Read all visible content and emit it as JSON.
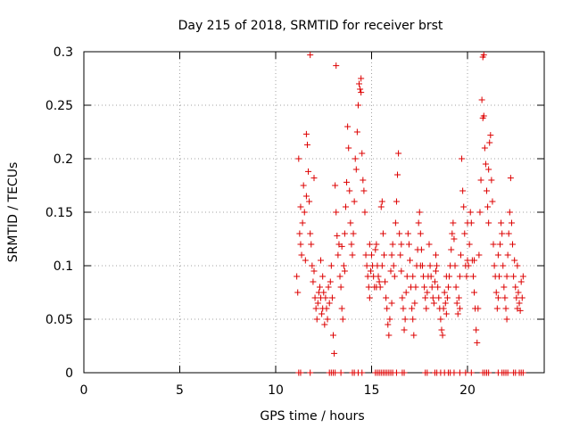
{
  "chart_data": {
    "type": "scatter",
    "title": "Day 215 of 2018, SRMTID for receiver brst",
    "xlabel": "GPS time / hours",
    "ylabel": "SRMTID / TECUs",
    "xlim": [
      0,
      24
    ],
    "ylim": [
      0,
      0.3
    ],
    "xticks": [
      0,
      5,
      10,
      15,
      20
    ],
    "xtick_labels": [
      "0",
      "5",
      "10",
      "15",
      "20"
    ],
    "yticks": [
      0,
      0.05,
      0.1,
      0.15,
      0.2,
      0.25,
      0.3
    ],
    "ytick_labels": [
      "0",
      "0.05",
      "0.1",
      "0.15",
      "0.2",
      "0.25",
      "0.3"
    ],
    "grid": true,
    "marker": "+",
    "color": "#dd0000",
    "series": [
      {
        "name": "SRMTID",
        "points": [
          [
            11.1,
            0.09
          ],
          [
            11.15,
            0.075
          ],
          [
            11.2,
            0.2
          ],
          [
            11.25,
            0.13
          ],
          [
            11.3,
            0.12
          ],
          [
            11.35,
            0.11
          ],
          [
            11.4,
            0.14
          ],
          [
            11.45,
            0.175
          ],
          [
            11.5,
            0.15
          ],
          [
            11.55,
            0.105
          ],
          [
            11.6,
            0.223
          ],
          [
            11.65,
            0.213
          ],
          [
            11.7,
            0.188
          ],
          [
            11.75,
            0.16
          ],
          [
            11.8,
            0.13
          ],
          [
            11.85,
            0.12
          ],
          [
            11.9,
            0.1
          ],
          [
            11.95,
            0.085
          ],
          [
            12.0,
            0.095
          ],
          [
            12.05,
            0.07
          ],
          [
            12.1,
            0.06
          ],
          [
            12.15,
            0.05
          ],
          [
            12.2,
            0.065
          ],
          [
            12.25,
            0.075
          ],
          [
            12.3,
            0.08
          ],
          [
            12.35,
            0.07
          ],
          [
            12.4,
            0.055
          ],
          [
            12.45,
            0.06
          ],
          [
            12.5,
            0.075
          ],
          [
            12.55,
            0.045
          ],
          [
            12.6,
            0.07
          ],
          [
            12.65,
            0.06
          ],
          [
            12.7,
            0.05
          ],
          [
            12.75,
            0.08
          ],
          [
            12.8,
            0.065
          ],
          [
            12.85,
            0.085
          ],
          [
            12.9,
            0.1
          ],
          [
            12.95,
            0.07
          ],
          [
            13.0,
            0.035
          ],
          [
            13.05,
            0.018
          ],
          [
            13.1,
            0.175
          ],
          [
            13.15,
            0.15
          ],
          [
            13.2,
            0.128
          ],
          [
            13.25,
            0.11
          ],
          [
            13.3,
            0.12
          ],
          [
            13.35,
            0.09
          ],
          [
            13.4,
            0.08
          ],
          [
            13.45,
            0.06
          ],
          [
            13.5,
            0.05
          ],
          [
            13.55,
            0.1
          ],
          [
            13.6,
            0.13
          ],
          [
            13.65,
            0.155
          ],
          [
            13.7,
            0.178
          ],
          [
            13.75,
            0.23
          ],
          [
            13.8,
            0.21
          ],
          [
            13.85,
            0.17
          ],
          [
            13.9,
            0.14
          ],
          [
            13.95,
            0.12
          ],
          [
            14.0,
            0.11
          ],
          [
            14.05,
            0.13
          ],
          [
            14.1,
            0.16
          ],
          [
            14.15,
            0.2
          ],
          [
            14.2,
            0.19
          ],
          [
            14.25,
            0.225
          ],
          [
            14.3,
            0.25
          ],
          [
            14.35,
            0.27
          ],
          [
            14.4,
            0.265
          ],
          [
            14.45,
            0.275
          ],
          [
            14.5,
            0.205
          ],
          [
            14.55,
            0.18
          ],
          [
            14.6,
            0.17
          ],
          [
            14.65,
            0.15
          ],
          [
            14.7,
            0.11
          ],
          [
            14.75,
            0.1
          ],
          [
            14.8,
            0.09
          ],
          [
            14.85,
            0.08
          ],
          [
            14.9,
            0.07
          ],
          [
            14.95,
            0.095
          ],
          [
            15.0,
            0.11
          ],
          [
            15.05,
            0.1
          ],
          [
            15.1,
            0.09
          ],
          [
            15.15,
            0.08
          ],
          [
            15.2,
            0.115
          ],
          [
            15.25,
            0.12
          ],
          [
            15.3,
            0.1
          ],
          [
            15.35,
            0.09
          ],
          [
            15.4,
            0.085
          ],
          [
            15.45,
            0.08
          ],
          [
            15.5,
            0.155
          ],
          [
            15.55,
            0.16
          ],
          [
            15.6,
            0.13
          ],
          [
            15.65,
            0.11
          ],
          [
            15.7,
            0.085
          ],
          [
            15.75,
            0.07
          ],
          [
            15.8,
            0.06
          ],
          [
            15.85,
            0.045
          ],
          [
            15.9,
            0.035
          ],
          [
            15.95,
            0.05
          ],
          [
            16.0,
            0.095
          ],
          [
            16.05,
            0.11
          ],
          [
            16.1,
            0.12
          ],
          [
            16.15,
            0.1
          ],
          [
            16.2,
            0.09
          ],
          [
            16.25,
            0.14
          ],
          [
            16.3,
            0.16
          ],
          [
            16.35,
            0.185
          ],
          [
            16.4,
            0.205
          ],
          [
            16.45,
            0.13
          ],
          [
            16.5,
            0.11
          ],
          [
            16.55,
            0.095
          ],
          [
            16.6,
            0.07
          ],
          [
            16.65,
            0.06
          ],
          [
            16.7,
            0.04
          ],
          [
            16.75,
            0.05
          ],
          [
            16.8,
            0.075
          ],
          [
            16.85,
            0.09
          ],
          [
            16.9,
            0.13
          ],
          [
            16.95,
            0.12
          ],
          [
            17.0,
            0.105
          ],
          [
            17.05,
            0.08
          ],
          [
            17.1,
            0.06
          ],
          [
            17.15,
            0.05
          ],
          [
            17.2,
            0.035
          ],
          [
            17.25,
            0.065
          ],
          [
            17.3,
            0.08
          ],
          [
            17.35,
            0.1
          ],
          [
            17.4,
            0.115
          ],
          [
            17.45,
            0.14
          ],
          [
            17.5,
            0.15
          ],
          [
            17.55,
            0.13
          ],
          [
            17.6,
            0.115
          ],
          [
            17.65,
            0.1
          ],
          [
            17.7,
            0.09
          ],
          [
            17.75,
            0.08
          ],
          [
            17.8,
            0.07
          ],
          [
            17.85,
            0.06
          ],
          [
            17.9,
            0.075
          ],
          [
            17.95,
            0.09
          ],
          [
            18.0,
            0.12
          ],
          [
            18.05,
            0.1
          ],
          [
            18.1,
            0.09
          ],
          [
            18.15,
            0.08
          ],
          [
            18.2,
            0.07
          ],
          [
            18.25,
            0.065
          ],
          [
            18.3,
            0.085
          ],
          [
            18.35,
            0.095
          ],
          [
            18.4,
            0.1
          ],
          [
            18.45,
            0.08
          ],
          [
            18.5,
            0.07
          ],
          [
            18.55,
            0.06
          ],
          [
            18.6,
            0.05
          ],
          [
            18.65,
            0.04
          ],
          [
            18.7,
            0.035
          ],
          [
            18.75,
            0.06
          ],
          [
            18.8,
            0.075
          ],
          [
            18.85,
            0.065
          ],
          [
            18.9,
            0.055
          ],
          [
            18.95,
            0.07
          ],
          [
            19.0,
            0.08
          ],
          [
            19.05,
            0.09
          ],
          [
            19.1,
            0.1
          ],
          [
            19.15,
            0.115
          ],
          [
            19.2,
            0.13
          ],
          [
            19.25,
            0.14
          ],
          [
            19.3,
            0.125
          ],
          [
            19.35,
            0.1
          ],
          [
            19.4,
            0.08
          ],
          [
            19.45,
            0.065
          ],
          [
            19.5,
            0.055
          ],
          [
            19.55,
            0.07
          ],
          [
            19.6,
            0.09
          ],
          [
            19.65,
            0.11
          ],
          [
            19.7,
            0.2
          ],
          [
            19.75,
            0.17
          ],
          [
            19.8,
            0.155
          ],
          [
            19.85,
            0.13
          ],
          [
            19.9,
            0.1
          ],
          [
            19.95,
            0.09
          ],
          [
            20.0,
            0.105
          ],
          [
            20.05,
            0.1
          ],
          [
            20.1,
            0.12
          ],
          [
            20.15,
            0.15
          ],
          [
            20.2,
            0.14
          ],
          [
            20.25,
            0.105
          ],
          [
            20.3,
            0.09
          ],
          [
            20.35,
            0.075
          ],
          [
            20.4,
            0.06
          ],
          [
            20.45,
            0.04
          ],
          [
            20.5,
            0.028
          ],
          [
            20.55,
            0.06
          ],
          [
            20.6,
            0.11
          ],
          [
            20.65,
            0.15
          ],
          [
            20.7,
            0.18
          ],
          [
            20.75,
            0.255
          ],
          [
            20.8,
            0.295
          ],
          [
            20.85,
            0.24
          ],
          [
            20.9,
            0.21
          ],
          [
            20.95,
            0.195
          ],
          [
            21.0,
            0.17
          ],
          [
            21.05,
            0.155
          ],
          [
            21.1,
            0.19
          ],
          [
            21.15,
            0.215
          ],
          [
            21.2,
            0.222
          ],
          [
            21.25,
            0.18
          ],
          [
            21.3,
            0.16
          ],
          [
            21.35,
            0.12
          ],
          [
            21.4,
            0.1
          ],
          [
            21.45,
            0.09
          ],
          [
            21.5,
            0.075
          ],
          [
            21.55,
            0.06
          ],
          [
            21.6,
            0.07
          ],
          [
            21.65,
            0.09
          ],
          [
            21.7,
            0.12
          ],
          [
            21.75,
            0.14
          ],
          [
            21.8,
            0.13
          ],
          [
            21.85,
            0.1
          ],
          [
            21.9,
            0.08
          ],
          [
            21.95,
            0.07
          ],
          [
            22.0,
            0.06
          ],
          [
            22.05,
            0.09
          ],
          [
            22.1,
            0.11
          ],
          [
            22.15,
            0.13
          ],
          [
            22.2,
            0.15
          ],
          [
            22.25,
            0.182
          ],
          [
            22.3,
            0.14
          ],
          [
            22.35,
            0.12
          ],
          [
            22.4,
            0.09
          ],
          [
            22.45,
            0.105
          ],
          [
            22.5,
            0.08
          ],
          [
            22.55,
            0.07
          ],
          [
            22.6,
            0.06
          ],
          [
            22.65,
            0.075
          ],
          [
            22.7,
            0.065
          ],
          [
            22.75,
            0.058
          ],
          [
            22.8,
            0.085
          ],
          [
            22.85,
            0.07
          ],
          [
            22.9,
            0.09
          ],
          [
            11.8,
            0.297
          ],
          [
            13.15,
            0.287
          ],
          [
            20.85,
            0.297
          ],
          [
            14.45,
            0.262
          ],
          [
            20.8,
            0.238
          ],
          [
            12.0,
            0.182
          ],
          [
            11.3,
            0.155
          ],
          [
            11.6,
            0.165
          ],
          [
            12.45,
            0.09
          ],
          [
            12.35,
            0.105
          ],
          [
            13.45,
            0.118
          ],
          [
            13.6,
            0.095
          ],
          [
            14.9,
            0.12
          ],
          [
            15.25,
            0.08
          ],
          [
            15.55,
            0.1
          ],
          [
            16.05,
            0.065
          ],
          [
            16.55,
            0.12
          ],
          [
            17.15,
            0.09
          ],
          [
            17.55,
            0.1
          ],
          [
            18.35,
            0.11
          ],
          [
            18.9,
            0.09
          ],
          [
            19.6,
            0.06
          ],
          [
            20.0,
            0.14
          ],
          [
            20.35,
            0.105
          ],
          [
            21.1,
            0.14
          ],
          [
            21.6,
            0.11
          ],
          [
            22.05,
            0.05
          ],
          [
            22.6,
            0.1
          ],
          [
            11.2,
            0.0
          ],
          [
            11.3,
            0.0
          ],
          [
            11.8,
            0.0
          ],
          [
            12.8,
            0.0
          ],
          [
            12.9,
            0.0
          ],
          [
            13.0,
            0.0
          ],
          [
            13.1,
            0.0
          ],
          [
            13.4,
            0.0
          ],
          [
            14.0,
            0.0
          ],
          [
            14.1,
            0.0
          ],
          [
            14.3,
            0.0
          ],
          [
            14.5,
            0.0
          ],
          [
            15.2,
            0.0
          ],
          [
            15.3,
            0.0
          ],
          [
            15.4,
            0.0
          ],
          [
            15.5,
            0.0
          ],
          [
            15.6,
            0.0
          ],
          [
            15.7,
            0.0
          ],
          [
            15.8,
            0.0
          ],
          [
            15.9,
            0.0
          ],
          [
            16.0,
            0.0
          ],
          [
            16.1,
            0.0
          ],
          [
            16.3,
            0.0
          ],
          [
            16.6,
            0.0
          ],
          [
            16.7,
            0.0
          ],
          [
            17.8,
            0.0
          ],
          [
            17.9,
            0.0
          ],
          [
            18.3,
            0.0
          ],
          [
            18.4,
            0.0
          ],
          [
            18.6,
            0.0
          ],
          [
            18.8,
            0.0
          ],
          [
            19.0,
            0.0
          ],
          [
            19.1,
            0.0
          ],
          [
            19.3,
            0.0
          ],
          [
            19.6,
            0.0
          ],
          [
            19.9,
            0.0
          ],
          [
            20.2,
            0.0
          ],
          [
            20.8,
            0.0
          ],
          [
            20.9,
            0.0
          ],
          [
            21.0,
            0.0
          ],
          [
            21.1,
            0.0
          ],
          [
            21.6,
            0.0
          ],
          [
            21.8,
            0.0
          ],
          [
            21.9,
            0.0
          ],
          [
            22.0,
            0.0
          ],
          [
            22.1,
            0.0
          ],
          [
            22.4,
            0.0
          ],
          [
            22.5,
            0.0
          ],
          [
            22.7,
            0.0
          ],
          [
            22.8,
            0.0
          ],
          [
            22.9,
            0.0
          ]
        ]
      }
    ]
  }
}
